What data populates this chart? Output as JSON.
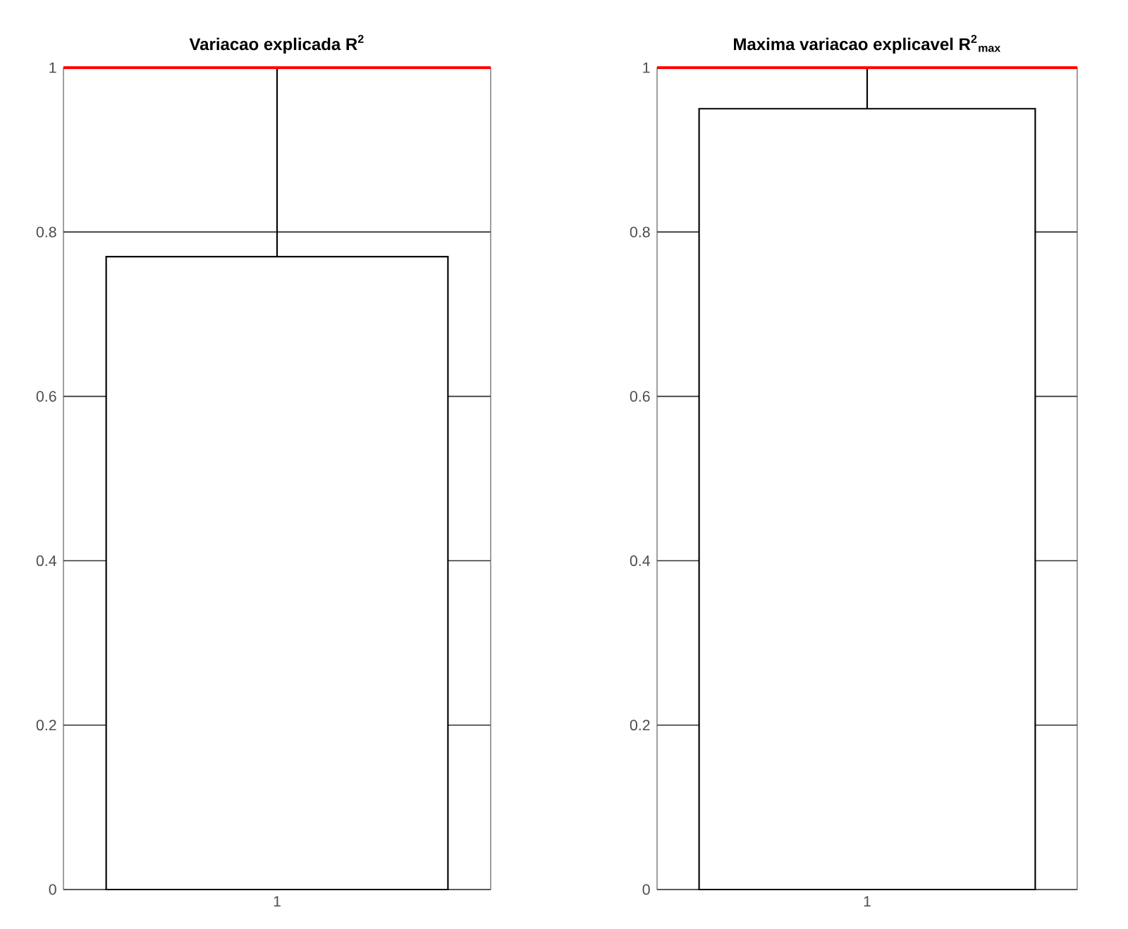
{
  "chart_data": [
    {
      "type": "bar",
      "title": "Variacao explicada R$^{2}$",
      "categories": [
        "1"
      ],
      "values": [
        0.77
      ],
      "color": "#ffffff",
      "errors": [
        [
          0.77,
          1
        ]
      ],
      "ylim": [
        0,
        1
      ],
      "yticks": [
        0,
        0.2,
        0.4,
        0.6,
        0.8,
        1
      ],
      "grid": "y",
      "ref_lines": [
        {
          "axis": "y",
          "value": 1,
          "color": "#ff0000"
        }
      ]
    },
    {
      "type": "bar",
      "title": "Maxima variacao explicavel R$^{2}$$_{max}$",
      "categories": [
        "1"
      ],
      "values": [
        0.95
      ],
      "color": "#ffffff",
      "errors": [
        [
          0.95,
          1
        ]
      ],
      "ylim": [
        0,
        1
      ],
      "yticks": [
        0,
        0.2,
        0.4,
        0.6,
        0.8,
        1
      ],
      "grid": "y",
      "ref_lines": [
        {
          "axis": "y",
          "value": 1,
          "color": "#ff0000"
        }
      ]
    }
  ]
}
